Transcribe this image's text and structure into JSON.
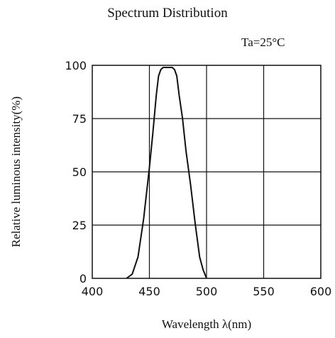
{
  "chart_data": {
    "type": "line",
    "title": "Spectrum Distribution",
    "condition": "Ta=25°C",
    "xlabel": "Wavelength λ(nm)",
    "ylabel": "Relative luminous intensity(%)",
    "xlim": [
      400,
      600
    ],
    "ylim": [
      0,
      100
    ],
    "xticks": [
      "400",
      "450",
      "500",
      "550",
      "600"
    ],
    "yticks": [
      "0",
      "25",
      "50",
      "75",
      "100"
    ],
    "grid": true,
    "series": [
      {
        "x": [
          430,
          435,
          440,
          445,
          450,
          453,
          456,
          458,
          460,
          462,
          466,
          470,
          472,
          474,
          476,
          479,
          482,
          486,
          490,
          494,
          497,
          500
        ],
        "y": [
          0,
          2,
          10,
          28,
          52,
          68,
          86,
          95,
          98,
          99,
          99,
          99,
          98,
          95,
          86,
          75,
          60,
          44,
          26,
          10,
          4,
          0
        ]
      }
    ]
  }
}
